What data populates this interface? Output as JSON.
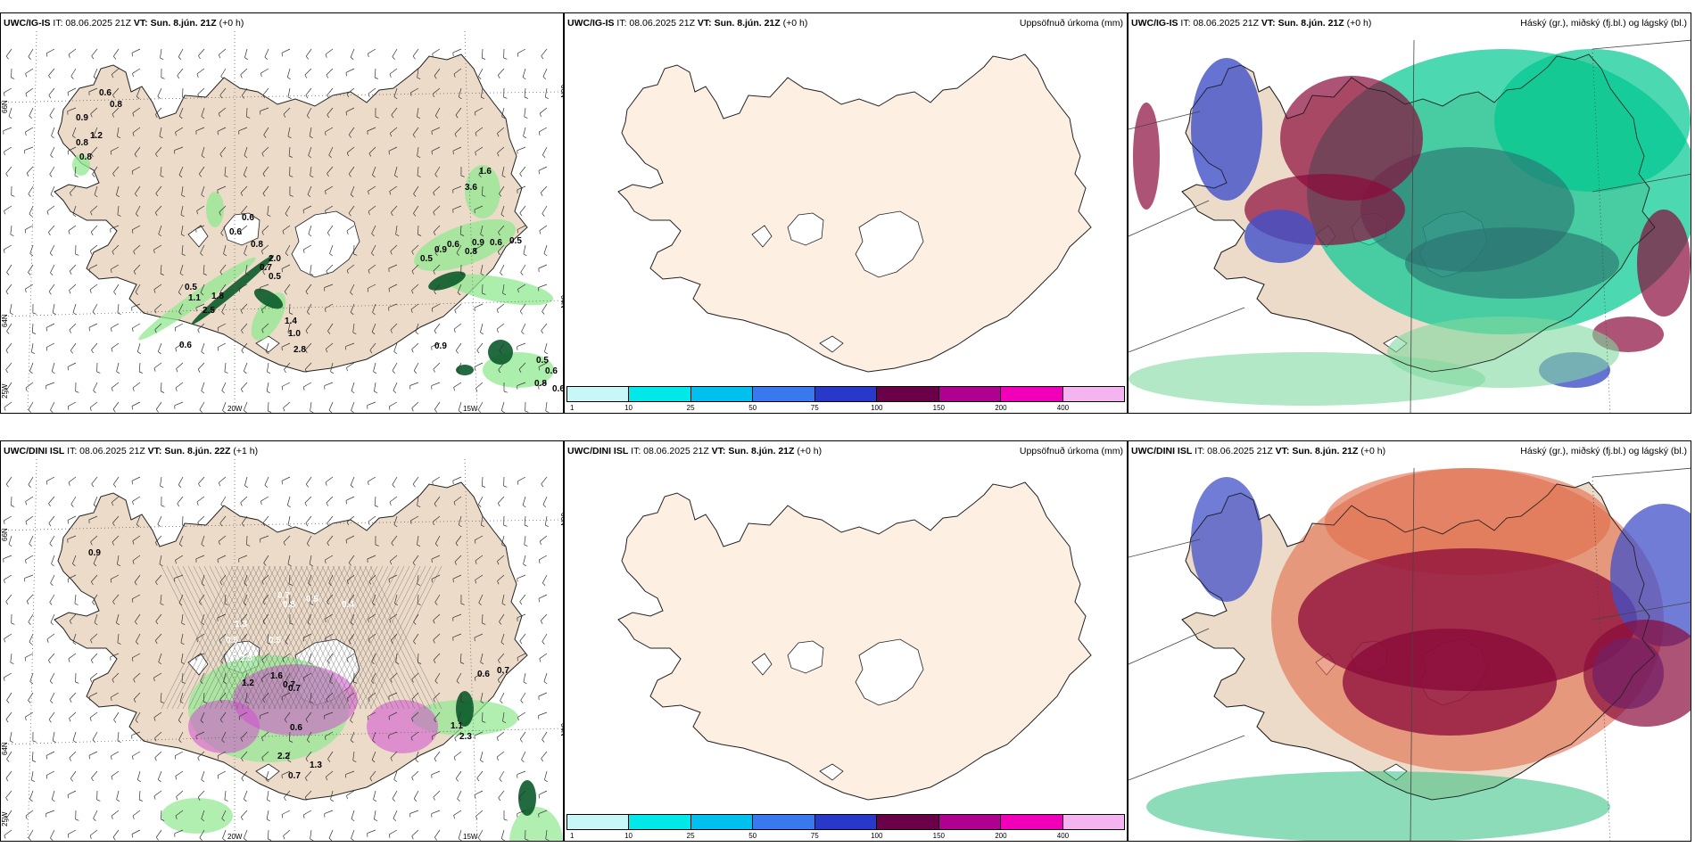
{
  "panels": {
    "r1c1": {
      "model": "UWC/IG-IS",
      "it": "IT: 08.06.2025 21Z",
      "vt_label": "VT:",
      "vt": "Sun. 8.jún. 21Z",
      "lead": "(+0 h)"
    },
    "r1c2": {
      "model": "UWC/IG-IS",
      "it": "IT: 08.06.2025 21Z",
      "vt_label": "VT:",
      "vt": "Sun. 8.jún. 21Z",
      "lead": "(+0 h)",
      "right": "Uppsöfnuð úrkoma (mm)"
    },
    "r1c3": {
      "model": "UWC/IG-IS",
      "it": "IT: 08.06.2025 21Z",
      "vt_label": "VT:",
      "vt": "Sun. 8.jún. 21Z",
      "lead": "(+0 h)",
      "right": "Háský (gr.), miðský (fj.bl.) og lágský (bl.)"
    },
    "r2c1": {
      "model": "UWC/DINI ISL",
      "it": "IT: 08.06.2025 21Z",
      "vt_label": "VT:",
      "vt": "Sun. 8.jún. 22Z",
      "lead": "(+1 h)"
    },
    "r2c2": {
      "model": "UWC/DINI ISL",
      "it": "IT: 08.06.2025 21Z",
      "vt_label": "VT:",
      "vt": "Sun. 8.jún. 21Z",
      "lead": "(+0 h)",
      "right": "Uppsöfnuð úrkoma (mm)"
    },
    "r2c3": {
      "model": "UWC/DINI ISL",
      "it": "IT: 08.06.2025 21Z",
      "vt_label": "VT:",
      "vt": "Sun. 8.jún. 21Z",
      "lead": "(+0 h)",
      "right": "Háský (gr.), miðský (fj.bl.) og lágský (bl.)"
    }
  },
  "axes": {
    "lat66": "66N",
    "lat64": "64N",
    "lon25": "25W",
    "lon20": "20W",
    "lon15": "15W",
    "right66": "66N",
    "right64": "64N"
  },
  "colorbar": {
    "colors": [
      "#c8f7f7",
      "#00e8e8",
      "#00c0f0",
      "#3a78f0",
      "#2838c8",
      "#6a0048",
      "#b00090",
      "#f000b8",
      "#f4b4f0"
    ],
    "ticks": [
      "1",
      "10",
      "25",
      "50",
      "75",
      "100",
      "150",
      "200",
      "400"
    ]
  },
  "precip_labels_top": [
    "0.6",
    "0.8",
    "0.9",
    "0.8",
    "1.2",
    "0.8",
    "0.6",
    "0.6",
    "0.8",
    "2.0",
    "0.7",
    "0.5",
    "0.5",
    "1.1",
    "1.8",
    "2.5",
    "0.6",
    "1.4",
    "1.0",
    "2.8",
    "0.5",
    "0.9",
    "0.6",
    "0.8",
    "0.9",
    "0.6",
    "0.5",
    "1.6",
    "3.6",
    "0.9",
    "0.5",
    "0.6",
    "0.8",
    "0.6"
  ],
  "precip_labels_bottom": [
    "0.9",
    "0.7",
    "0.8",
    "0.5",
    "0.4",
    "1.3",
    "0.5",
    "2.3",
    "0.5",
    "0.7",
    "1.2",
    "1.6",
    "0.7",
    "0.6",
    "2.2",
    "0.7",
    "1.3",
    "0.6",
    "0.7",
    "1.1",
    "2.3"
  ],
  "theme": {
    "land": "#eddbc9",
    "land_light": "#fdf0e2",
    "precip_green": "#90e890",
    "precip_dark": "#0a5a2a",
    "magenta": "#d050d0"
  }
}
